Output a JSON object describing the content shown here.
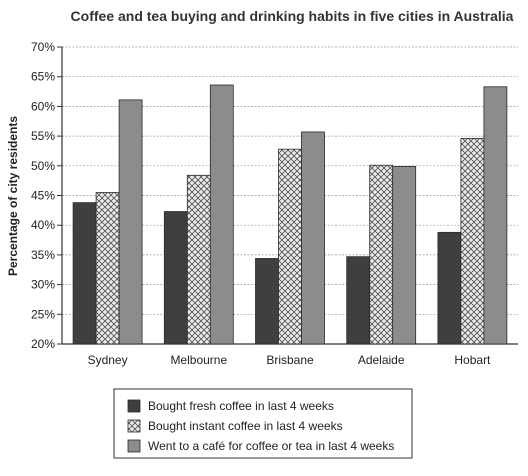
{
  "chart_data": {
    "type": "bar",
    "title": "Coffee and tea buying and drinking habits in five cities in Australia",
    "xlabel": "",
    "ylabel": "Percentage of city residents",
    "categories": [
      "Sydney",
      "Melbourne",
      "Brisbane",
      "Adelaide",
      "Hobart"
    ],
    "y_ticks": [
      "20%",
      "25%",
      "30%",
      "35%",
      "40%",
      "45%",
      "50%",
      "55%",
      "60%",
      "65%",
      "70%"
    ],
    "ylim": [
      20,
      70
    ],
    "grid": true,
    "legend_position": "bottom",
    "series": [
      {
        "name": "Bought fresh coffee in last 4 weeks",
        "pattern": "solid",
        "color": "#3f3f3f",
        "values": [
          43.8,
          42.3,
          34.4,
          34.7,
          38.8
        ]
      },
      {
        "name": "Bought instant coffee in last 4 weeks",
        "pattern": "crosshatch",
        "color": "#d9d9d9",
        "values": [
          45.5,
          48.4,
          52.8,
          50.1,
          54.6
        ]
      },
      {
        "name": "Went to a café for coffee or tea in last 4 weeks",
        "pattern": "solid",
        "color": "#8c8c8c",
        "values": [
          61.1,
          63.6,
          55.7,
          49.9,
          63.3
        ]
      }
    ]
  }
}
